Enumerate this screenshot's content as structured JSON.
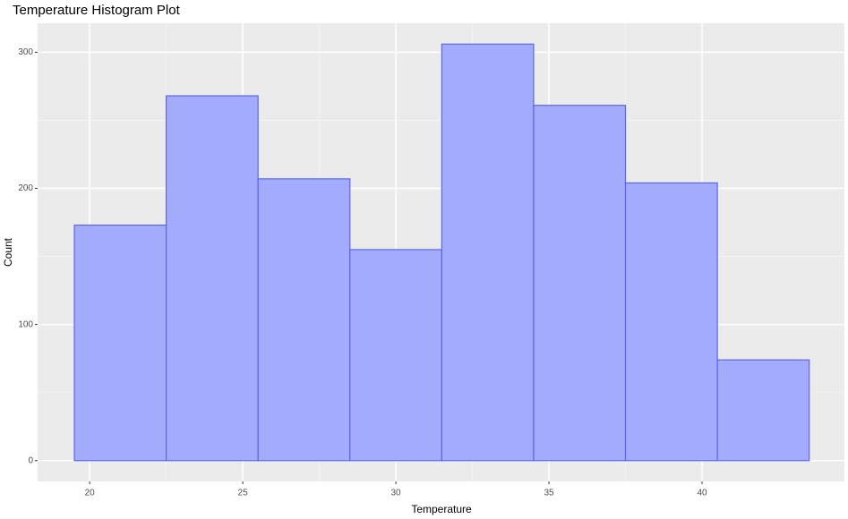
{
  "chart_data": {
    "type": "histogram",
    "title": "Temperature Histogram Plot",
    "x_label": "Temperature",
    "y_label": "Count",
    "bins": [
      19.5,
      22.5,
      25.5,
      28.5,
      31.5,
      34.5,
      37.5,
      40.5,
      43.5
    ],
    "values": [
      173,
      268,
      207,
      155,
      306,
      261,
      204,
      74
    ],
    "color": "#a3acfc",
    "edge_color": "#5a66e6",
    "xlim": [
      18.3,
      44.65
    ],
    "xticks": [
      20,
      25,
      30,
      35,
      40
    ],
    "ylim": [
      -15.3,
      321.3
    ],
    "yticks": [
      0,
      100,
      200,
      300
    ],
    "grid": true
  }
}
